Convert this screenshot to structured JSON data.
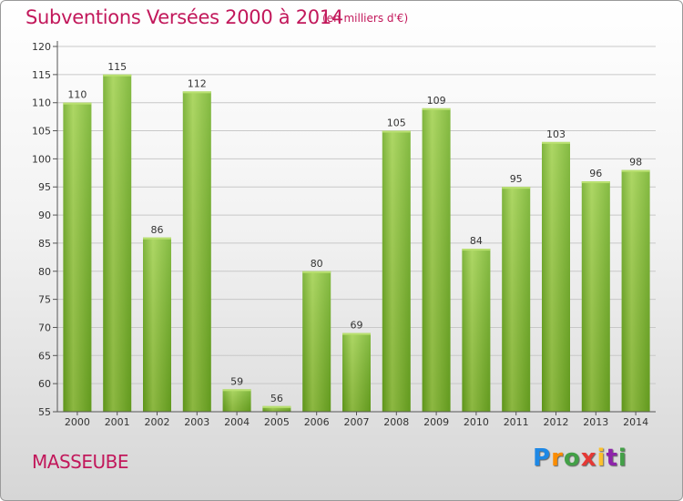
{
  "chart_data": {
    "type": "bar",
    "title": "Subventions Versées 2000 à 2014",
    "subtitle": "(en milliers d'€)",
    "categories": [
      "2000",
      "2001",
      "2002",
      "2003",
      "2004",
      "2005",
      "2006",
      "2007",
      "2008",
      "2009",
      "2010",
      "2011",
      "2012",
      "2013",
      "2014"
    ],
    "values": [
      110,
      115,
      86,
      112,
      59,
      56,
      80,
      69,
      105,
      109,
      84,
      95,
      103,
      96,
      98
    ],
    "ylim": [
      55,
      120
    ],
    "yticks": [
      55,
      60,
      65,
      70,
      75,
      80,
      85,
      90,
      95,
      100,
      105,
      110,
      115,
      120
    ],
    "grid": true,
    "bar_color": "#7cbc2c",
    "bar_highlight": "#a8d65a"
  },
  "commune": "MASSEUBE",
  "logo": {
    "letters": [
      "P",
      "r",
      "o",
      "x",
      "i",
      "t",
      "i"
    ],
    "colors": [
      "#1e88e5",
      "#fb8c00",
      "#43a047",
      "#e53935",
      "#fbc02d",
      "#8e24aa",
      "#43a047"
    ]
  }
}
